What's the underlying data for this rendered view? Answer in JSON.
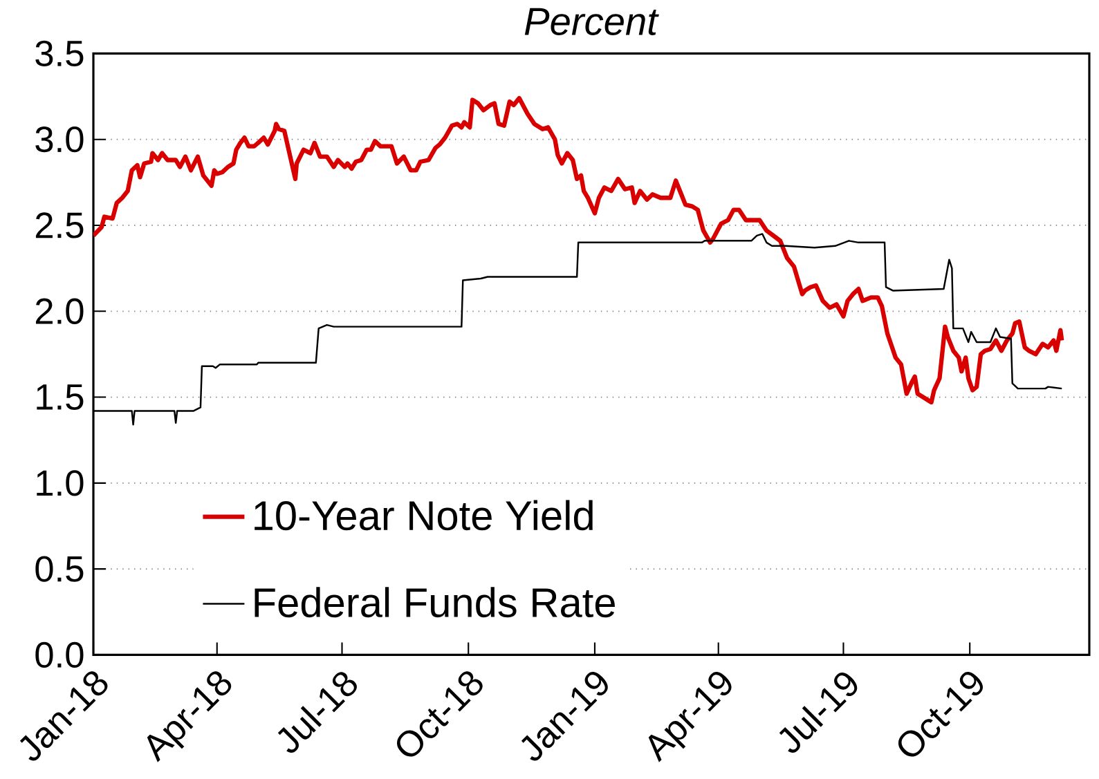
{
  "chart_data": {
    "type": "line",
    "title": "*Percent*",
    "xlim": [
      "2018-01-01",
      "2019-12-27"
    ],
    "xticks": [
      {
        "value": "2018-01-01",
        "label": "Jan-18"
      },
      {
        "value": "2018-04-01",
        "label": "Apr-18"
      },
      {
        "value": "2018-07-01",
        "label": "Jul-18"
      },
      {
        "value": "2018-10-01",
        "label": "Oct-18"
      },
      {
        "value": "2019-01-01",
        "label": "Jan-19"
      },
      {
        "value": "2019-04-01",
        "label": "Apr-19"
      },
      {
        "value": "2019-07-01",
        "label": "Jul-19"
      },
      {
        "value": "2019-10-01",
        "label": "Oct-19"
      }
    ],
    "ylim": [
      0,
      3.5
    ],
    "yticks": [
      {
        "value": 0,
        "label": "0.0"
      },
      0.5,
      {
        "value": 1,
        "label": "1.0"
      },
      1.5,
      {
        "value": 2,
        "label": "2.0"
      },
      2.5,
      {
        "value": 3,
        "label": "3.0"
      },
      3.5
    ],
    "grid": "y",
    "legend": "bottom left",
    "series": [
      {
        "name": "10-Year Note Yield",
        "color": "#d90000",
        "x": [
          "2018-01-01",
          "2018-01-07",
          "2018-01-09",
          "2018-01-15",
          "2018-01-18",
          "2018-01-22",
          "2018-01-26",
          "2018-01-29",
          "2018-02-02",
          "2018-02-04",
          "2018-02-07",
          "2018-02-12",
          "2018-02-13",
          "2018-02-17",
          "2018-02-20",
          "2018-02-24",
          "2018-03-02",
          "2018-03-05",
          "2018-03-09",
          "2018-03-13",
          "2018-03-18",
          "2018-03-22",
          "2018-03-28",
          "2018-03-30",
          "2018-04-01",
          "2018-04-05",
          "2018-04-09",
          "2018-04-13",
          "2018-04-15",
          "2018-04-18",
          "2018-04-21",
          "2018-04-24",
          "2018-04-28",
          "2018-05-01",
          "2018-05-05",
          "2018-05-08",
          "2018-05-13",
          "2018-05-14",
          "2018-05-16",
          "2018-05-20",
          "2018-05-28",
          "2018-05-29",
          "2018-06-03",
          "2018-06-08",
          "2018-06-11",
          "2018-06-15",
          "2018-06-20",
          "2018-06-25",
          "2018-06-28",
          "2018-07-03",
          "2018-07-05",
          "2018-07-08",
          "2018-07-11",
          "2018-07-15",
          "2018-07-19",
          "2018-07-22",
          "2018-07-25",
          "2018-07-29",
          "2018-08-02",
          "2018-08-06",
          "2018-08-10",
          "2018-08-15",
          "2018-08-20",
          "2018-08-24",
          "2018-08-27",
          "2018-09-02",
          "2018-09-07",
          "2018-09-10",
          "2018-09-14",
          "2018-09-19",
          "2018-09-23",
          "2018-09-26",
          "2018-09-28",
          "2018-10-02",
          "2018-10-04",
          "2018-10-08",
          "2018-10-12",
          "2018-10-17",
          "2018-10-20",
          "2018-10-23",
          "2018-10-27",
          "2018-10-31",
          "2018-11-03",
          "2018-11-07",
          "2018-11-13",
          "2018-11-18",
          "2018-11-24",
          "2018-11-28",
          "2018-12-03",
          "2018-12-05",
          "2018-12-08",
          "2018-12-12",
          "2018-12-16",
          "2018-12-19",
          "2018-12-22",
          "2018-12-24",
          "2018-12-27",
          "2019-01-01",
          "2019-01-04",
          "2019-01-08",
          "2019-01-13",
          "2019-01-18",
          "2019-01-23",
          "2019-01-28",
          "2019-01-30",
          "2019-02-03",
          "2019-02-08",
          "2019-02-12",
          "2019-02-18",
          "2019-02-25",
          "2019-03-01",
          "2019-03-05",
          "2019-03-08",
          "2019-03-13",
          "2019-03-17",
          "2019-03-21",
          "2019-03-26",
          "2019-03-28",
          "2019-04-03",
          "2019-04-08",
          "2019-04-12",
          "2019-04-16",
          "2019-04-21",
          "2019-04-26",
          "2019-05-01",
          "2019-05-06",
          "2019-05-11",
          "2019-05-16",
          "2019-05-21",
          "2019-05-26",
          "2019-06-01",
          "2019-06-03",
          "2019-06-07",
          "2019-06-11",
          "2019-06-16",
          "2019-06-21",
          "2019-06-26",
          "2019-07-01",
          "2019-07-04",
          "2019-07-08",
          "2019-07-12",
          "2019-07-15",
          "2019-07-21",
          "2019-07-26",
          "2019-07-29",
          "2019-08-02",
          "2019-08-08",
          "2019-08-12",
          "2019-08-16",
          "2019-08-20",
          "2019-08-22",
          "2019-08-24",
          "2019-08-28",
          "2019-09-03",
          "2019-09-05",
          "2019-09-09",
          "2019-09-13",
          "2019-09-15",
          "2019-09-19",
          "2019-09-23",
          "2019-09-25",
          "2019-09-28",
          "2019-09-30",
          "2019-10-03",
          "2019-10-06",
          "2019-10-09",
          "2019-10-12",
          "2019-10-16",
          "2019-10-20",
          "2019-10-24",
          "2019-10-28",
          "2019-11-01",
          "2019-11-03",
          "2019-11-06",
          "2019-11-10",
          "2019-11-13",
          "2019-11-18",
          "2019-11-23",
          "2019-11-27",
          "2019-12-01",
          "2019-12-03",
          "2019-12-06",
          "2019-12-07"
        ],
        "values": [
          2.44,
          2.49,
          2.55,
          2.54,
          2.63,
          2.66,
          2.7,
          2.82,
          2.85,
          2.78,
          2.86,
          2.87,
          2.92,
          2.88,
          2.92,
          2.88,
          2.88,
          2.84,
          2.9,
          2.82,
          2.9,
          2.79,
          2.73,
          2.82,
          2.8,
          2.81,
          2.84,
          2.86,
          2.94,
          2.98,
          3.01,
          2.96,
          2.96,
          2.98,
          3.01,
          2.97,
          3.05,
          3.09,
          3.06,
          3.05,
          2.77,
          2.86,
          2.94,
          2.92,
          2.98,
          2.9,
          2.9,
          2.84,
          2.88,
          2.84,
          2.86,
          2.83,
          2.87,
          2.88,
          2.94,
          2.94,
          2.99,
          2.96,
          2.96,
          2.96,
          2.86,
          2.9,
          2.82,
          2.82,
          2.87,
          2.88,
          2.95,
          2.97,
          3.01,
          3.08,
          3.09,
          3.07,
          3.1,
          3.07,
          3.23,
          3.21,
          3.17,
          3.2,
          3.21,
          3.09,
          3.08,
          3.22,
          3.2,
          3.24,
          3.15,
          3.09,
          3.06,
          3.07,
          3.0,
          2.91,
          2.86,
          2.92,
          2.88,
          2.77,
          2.79,
          2.7,
          2.66,
          2.57,
          2.66,
          2.72,
          2.7,
          2.77,
          2.71,
          2.72,
          2.63,
          2.7,
          2.65,
          2.68,
          2.66,
          2.66,
          2.76,
          2.68,
          2.62,
          2.61,
          2.59,
          2.47,
          2.4,
          2.42,
          2.51,
          2.53,
          2.59,
          2.59,
          2.53,
          2.53,
          2.53,
          2.47,
          2.44,
          2.41,
          2.31,
          2.26,
          2.1,
          2.12,
          2.14,
          2.15,
          2.06,
          2.02,
          2.04,
          1.97,
          2.06,
          2.1,
          2.13,
          2.06,
          2.08,
          2.08,
          2.03,
          1.87,
          1.73,
          1.69,
          1.52,
          1.59,
          1.62,
          1.52,
          1.5,
          1.47,
          1.54,
          1.61,
          1.91,
          1.85,
          1.77,
          1.73,
          1.65,
          1.73,
          1.61,
          1.54,
          1.56,
          1.75,
          1.77,
          1.78,
          1.83,
          1.77,
          1.83,
          1.87,
          1.93,
          1.94,
          1.79,
          1.77,
          1.75,
          1.81,
          1.79,
          1.83,
          1.77,
          1.89,
          1.83
        ]
      },
      {
        "name": "Federal Funds Rate",
        "color": "#000000",
        "x": [
          "2018-01-01",
          "2018-01-29",
          "2018-01-30",
          "2018-01-31",
          "2018-03-01",
          "2018-03-02",
          "2018-03-03",
          "2018-03-15",
          "2018-03-20",
          "2018-03-21",
          "2018-03-29",
          "2018-03-31",
          "2018-04-03",
          "2018-04-30",
          "2018-05-01",
          "2018-06-12",
          "2018-06-14",
          "2018-06-20",
          "2018-06-25",
          "2018-09-26",
          "2018-09-27",
          "2018-10-10",
          "2018-10-15",
          "2018-12-19",
          "2018-12-20",
          "2019-03-20",
          "2019-03-22",
          "2019-04-25",
          "2019-04-29",
          "2019-05-03",
          "2019-05-06",
          "2019-05-10",
          "2019-05-20",
          "2019-06-10",
          "2019-06-25",
          "2019-07-05",
          "2019-07-12",
          "2019-07-31",
          "2019-08-01",
          "2019-08-06",
          "2019-09-12",
          "2019-09-16",
          "2019-09-18",
          "2019-09-19",
          "2019-09-26",
          "2019-09-30",
          "2019-10-02",
          "2019-10-06",
          "2019-10-16",
          "2019-10-20",
          "2019-10-23",
          "2019-10-31",
          "2019-11-01",
          "2019-11-05",
          "2019-11-25",
          "2019-11-27",
          "2019-12-07"
        ],
        "values": [
          1.42,
          1.42,
          1.34,
          1.42,
          1.42,
          1.35,
          1.42,
          1.42,
          1.44,
          1.68,
          1.68,
          1.67,
          1.69,
          1.69,
          1.7,
          1.7,
          1.9,
          1.92,
          1.91,
          1.91,
          2.18,
          2.19,
          2.2,
          2.2,
          2.4,
          2.4,
          2.41,
          2.41,
          2.44,
          2.45,
          2.4,
          2.38,
          2.38,
          2.37,
          2.38,
          2.41,
          2.4,
          2.4,
          2.14,
          2.12,
          2.13,
          2.3,
          2.25,
          1.9,
          1.9,
          1.82,
          1.88,
          1.82,
          1.82,
          1.9,
          1.85,
          1.84,
          1.58,
          1.55,
          1.55,
          1.56,
          1.55
        ]
      }
    ]
  }
}
